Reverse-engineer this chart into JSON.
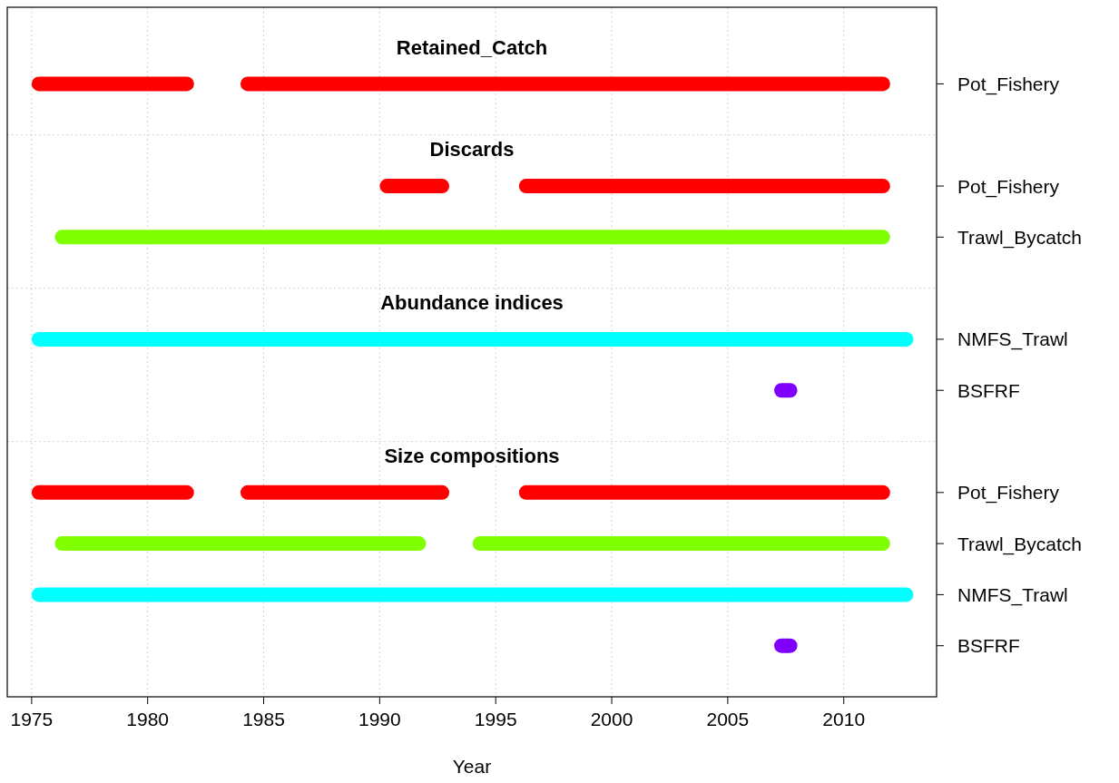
{
  "chart_data": {
    "type": "bar",
    "orientation": "horizontal",
    "xlabel": "Year",
    "categories": [
      null,
      "Pot_Fishery",
      null,
      "Pot_Fishery",
      "Trawl_Bycatch",
      null,
      "NMFS_Trawl",
      "BSFRF",
      null,
      "Pot_Fishery",
      "Trawl_Bycatch",
      "NMFS_Trawl",
      "BSFRF"
    ],
    "series": [
      {
        "base": [
          null,
          1975,
          null,
          1990,
          1976,
          null,
          1975,
          2007,
          null,
          1975,
          1976,
          1975,
          2007
        ],
        "values": [
          null,
          7,
          null,
          3,
          36,
          null,
          38,
          1,
          null,
          7,
          16,
          38,
          1
        ],
        "colors": [
          null,
          "#ff0000",
          null,
          "#ff0000",
          "#80ff00",
          null,
          "#00ffff",
          "#8000ff",
          null,
          "#ff0000",
          "#80ff00",
          "#00ffff",
          "#8000ff"
        ]
      },
      {
        "base": [
          null,
          1984,
          null,
          1996,
          null,
          null,
          null,
          null,
          null,
          1984,
          1994,
          null,
          null
        ],
        "values": [
          null,
          28,
          null,
          16,
          null,
          null,
          null,
          null,
          null,
          9,
          18,
          null,
          null
        ],
        "colors": [
          null,
          "#ff0000",
          null,
          "#ff0000",
          null,
          null,
          null,
          null,
          null,
          "#ff0000",
          "#80ff00",
          null,
          null
        ]
      },
      {
        "base": [
          null,
          null,
          null,
          null,
          null,
          null,
          null,
          null,
          null,
          1996,
          null,
          null,
          null
        ],
        "values": [
          null,
          null,
          null,
          null,
          null,
          null,
          null,
          null,
          null,
          16,
          null,
          null,
          null
        ],
        "colors": [
          null,
          null,
          null,
          null,
          null,
          null,
          null,
          null,
          null,
          "#ff0000",
          null,
          null,
          null
        ]
      }
    ],
    "annotations": [
      "Retained_Catch",
      "Discards",
      "Abundance indices",
      "Size compositions"
    ],
    "xlim": [
      1973.95,
      2014.0
    ],
    "xticks": [
      1975,
      1980,
      1985,
      1990,
      1995,
      2000,
      2005,
      2010
    ],
    "grid": true
  }
}
